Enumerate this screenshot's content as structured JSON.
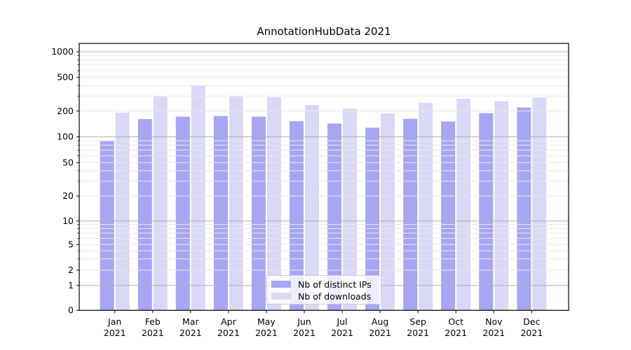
{
  "chart_data": {
    "type": "bar",
    "title": "AnnotationHubData 2021",
    "categories": [
      "Jan",
      "Feb",
      "Mar",
      "Apr",
      "May",
      "Jun",
      "Jul",
      "Aug",
      "Sep",
      "Oct",
      "Nov",
      "Dec"
    ],
    "year_label": "2021",
    "series": [
      {
        "name": "Nb of distinct IPs",
        "color": "#a6a6f2",
        "values": [
          90,
          161,
          172,
          175,
          172,
          152,
          143,
          128,
          162,
          151,
          189,
          220
        ]
      },
      {
        "name": "Nb of downloads",
        "color": "#d9d9f7",
        "values": [
          192,
          296,
          395,
          298,
          292,
          236,
          214,
          188,
          250,
          279,
          260,
          290
        ]
      }
    ],
    "yticks": [
      0,
      1,
      2,
      5,
      10,
      20,
      50,
      100,
      200,
      500,
      1000
    ],
    "yscale": "symlog",
    "ylim": [
      0,
      1100
    ],
    "xlabel": "",
    "ylabel": "",
    "grid": true,
    "grid_major_color": "#b0b0b0",
    "grid_minor_color": "#e8e8e8",
    "legend_position": "lower center",
    "legend_labels": [
      "Nb of distinct IPs",
      "Nb of downloads"
    ]
  }
}
